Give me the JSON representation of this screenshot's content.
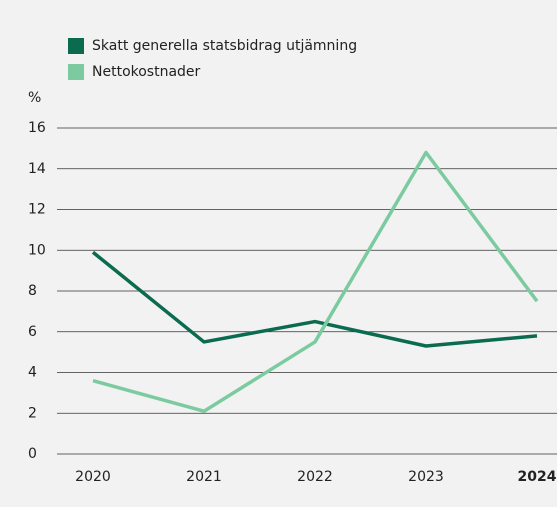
{
  "chart_data": {
    "type": "line",
    "y_unit_label": "%",
    "categories": [
      "2020",
      "2021",
      "2022",
      "2023",
      "2024"
    ],
    "series": [
      {
        "name": "Skatt generella statsbidrag utjämning",
        "color": "#0b6b4f",
        "values": [
          9.9,
          5.5,
          6.5,
          5.3,
          5.8
        ]
      },
      {
        "name": "Nettokostnader",
        "color": "#7ccba0",
        "values": [
          3.6,
          2.1,
          5.5,
          14.8,
          7.5
        ]
      }
    ],
    "ylim": [
      0,
      16
    ],
    "yticks": [
      0,
      2,
      4,
      6,
      8,
      10,
      12,
      14,
      16
    ],
    "grid": true,
    "legend": "top-left"
  }
}
